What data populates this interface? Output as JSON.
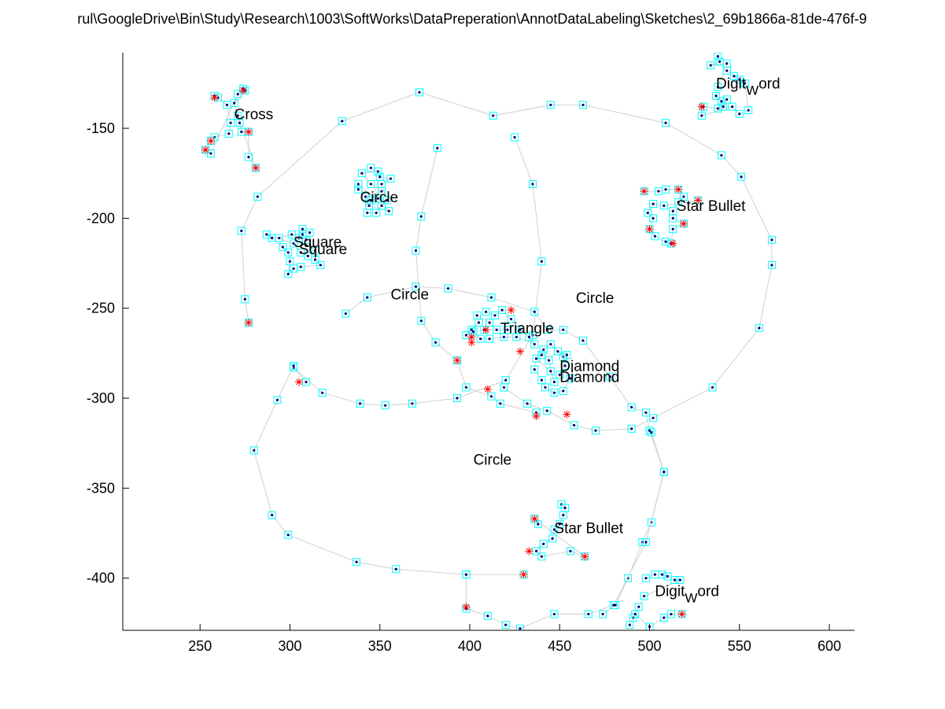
{
  "chart_data": {
    "type": "scatter",
    "title": "rul\\GoogleDrive\\Bin\\Study\\Research\\1003\\SoftWorks\\DataPreperation\\AnnotDataLabeling\\Sketches\\2_69b1866a-81de-476f-9",
    "xlabel": "",
    "ylabel": "",
    "xlim": [
      207,
      614
    ],
    "ylim": [
      -429,
      -108
    ],
    "grid": false,
    "x_ticks": [
      250,
      300,
      350,
      400,
      450,
      500,
      550,
      600
    ],
    "y_ticks": [
      -150,
      -200,
      -250,
      -300,
      -350,
      -400
    ],
    "x_tick_labels": [
      "250",
      "300",
      "350",
      "400",
      "450",
      "500",
      "550",
      "600"
    ],
    "y_tick_labels": [
      "-150",
      "-200",
      "-250",
      "-300",
      "-350",
      "-400"
    ],
    "colors": {
      "stroke": "#d0d0d0",
      "marker_box": "#00ffff",
      "point": "#000080",
      "corner": "#ff0000",
      "axis": "#000000"
    },
    "annotations": [
      {
        "text": "Cross",
        "x": 269,
        "y": -145
      },
      {
        "text": "Circle",
        "x": 339,
        "y": -191
      },
      {
        "text": "Square",
        "x": 302,
        "y": -216
      },
      {
        "text": "Square",
        "x": 305,
        "y": -220
      },
      {
        "text": "Circle",
        "x": 356,
        "y": -245
      },
      {
        "text": "Circle",
        "x": 459,
        "y": -247
      },
      {
        "text": "Triangle",
        "x": 417,
        "y": -264
      },
      {
        "text": "Diamond",
        "x": 450,
        "y": -285
      },
      {
        "text": "Diamond",
        "x": 450,
        "y": -291
      },
      {
        "text": "Circle",
        "x": 402,
        "y": -337
      },
      {
        "text": "Star Bullet",
        "x": 515,
        "y": -196
      },
      {
        "text": "Star Bullet",
        "x": 447,
        "y": -375
      },
      {
        "text": "Digit",
        "x": 537,
        "y": -128,
        "sub": "W",
        "suffix": "ord"
      },
      {
        "text": "Digit",
        "x": 503,
        "y": -410,
        "sub": "W",
        "suffix": "ord"
      }
    ],
    "strokes": [
      {
        "name": "circle-large-outer",
        "points": [
          [
            277,
            -258
          ],
          [
            275,
            -245
          ],
          [
            273,
            -207
          ],
          [
            282,
            -188
          ],
          [
            329,
            -146
          ],
          [
            372,
            -130
          ],
          [
            413,
            -143
          ],
          [
            445,
            -137
          ],
          [
            463,
            -137
          ],
          [
            509,
            -147
          ],
          [
            540,
            -165
          ],
          [
            551,
            -177
          ],
          [
            568,
            -212
          ],
          [
            568,
            -226
          ],
          [
            561,
            -261
          ],
          [
            535,
            -294
          ],
          [
            502,
            -311
          ],
          [
            490,
            -317
          ],
          [
            470,
            -318
          ],
          [
            458,
            -315
          ],
          [
            443,
            -307
          ],
          [
            432,
            -303
          ],
          [
            419,
            -294
          ]
        ]
      },
      {
        "name": "circle-upper-left",
        "points": [
          [
            425,
            -155
          ],
          [
            435,
            -181
          ],
          [
            440,
            -224
          ],
          [
            435,
            -265
          ],
          [
            420,
            -290
          ],
          [
            393,
            -300
          ],
          [
            368,
            -303
          ],
          [
            353,
            -304
          ],
          [
            339,
            -303
          ],
          [
            318,
            -297
          ],
          [
            302,
            -283
          ],
          [
            309,
            -291
          ]
        ]
      },
      {
        "name": "circle-upper-mid",
        "points": [
          [
            331,
            -253
          ],
          [
            343,
            -244
          ],
          [
            370,
            -238
          ],
          [
            388,
            -239
          ],
          [
            412,
            -244
          ],
          [
            436,
            -252
          ],
          [
            443,
            -262
          ],
          [
            452,
            -262
          ],
          [
            463,
            -268
          ],
          [
            478,
            -288
          ],
          [
            490,
            -305
          ],
          [
            498,
            -308
          ],
          [
            500,
            -318
          ],
          [
            508,
            -341
          ],
          [
            501,
            -369
          ],
          [
            496,
            -380
          ],
          [
            488,
            -400
          ],
          [
            481,
            -415
          ],
          [
            474,
            -420
          ]
        ]
      },
      {
        "name": "circle-center",
        "points": [
          [
            382,
            -161
          ],
          [
            373,
            -199
          ],
          [
            370,
            -218
          ],
          [
            373,
            -257
          ],
          [
            381,
            -269
          ],
          [
            393,
            -279
          ],
          [
            398,
            -294
          ],
          [
            412,
            -299
          ],
          [
            417,
            -303
          ],
          [
            437,
            -308
          ]
        ]
      },
      {
        "name": "circle-bottom",
        "points": [
          [
            501,
            -319
          ],
          [
            508,
            -341
          ],
          [
            498,
            -380
          ],
          [
            480,
            -415
          ],
          [
            466,
            -420
          ],
          [
            447,
            -420
          ],
          [
            428,
            -428
          ],
          [
            420,
            -426
          ],
          [
            410,
            -421
          ],
          [
            398,
            -417
          ],
          [
            398,
            -398
          ],
          [
            430,
            -398
          ],
          [
            398,
            -398
          ],
          [
            359,
            -395
          ],
          [
            337,
            -391
          ],
          [
            299,
            -376
          ],
          [
            290,
            -365
          ],
          [
            280,
            -329
          ],
          [
            293,
            -301
          ],
          [
            302,
            -282
          ]
        ]
      }
    ],
    "point_clusters": [
      {
        "name": "cross",
        "points": [
          [
            258,
            -132
          ],
          [
            260,
            -133
          ],
          [
            265,
            -137
          ],
          [
            267,
            -147
          ],
          [
            266,
            -153
          ],
          [
            258,
            -155
          ],
          [
            256,
            -157
          ],
          [
            253,
            -162
          ],
          [
            256,
            -164
          ],
          [
            271,
            -131
          ],
          [
            274,
            -128
          ],
          [
            275,
            -129
          ],
          [
            269,
            -136
          ],
          [
            272,
            -147
          ],
          [
            273,
            -152
          ],
          [
            277,
            -152
          ],
          [
            277,
            -166
          ],
          [
            281,
            -172
          ],
          [
            271,
            -143
          ]
        ]
      },
      {
        "name": "circle-small",
        "points": [
          [
            345,
            -172
          ],
          [
            349,
            -174
          ],
          [
            340,
            -175
          ],
          [
            345,
            -181
          ],
          [
            351,
            -185
          ],
          [
            342,
            -188
          ],
          [
            343,
            -197
          ],
          [
            348,
            -197
          ],
          [
            351,
            -193
          ],
          [
            354,
            -190
          ],
          [
            351,
            -181
          ],
          [
            356,
            -178
          ],
          [
            350,
            -177
          ],
          [
            345,
            -190
          ],
          [
            349,
            -189
          ],
          [
            338,
            -184
          ],
          [
            338,
            -181
          ],
          [
            355,
            -196
          ],
          [
            344,
            -193
          ]
        ]
      },
      {
        "name": "square",
        "points": [
          [
            294,
            -211
          ],
          [
            301,
            -209
          ],
          [
            305,
            -211
          ],
          [
            307,
            -209
          ],
          [
            307,
            -206
          ],
          [
            311,
            -208
          ],
          [
            309,
            -212
          ],
          [
            314,
            -218
          ],
          [
            314,
            -223
          ],
          [
            317,
            -226
          ],
          [
            306,
            -227
          ],
          [
            302,
            -228
          ],
          [
            299,
            -231
          ],
          [
            300,
            -224
          ],
          [
            299,
            -219
          ],
          [
            296,
            -216
          ],
          [
            290,
            -211
          ],
          [
            287,
            -209
          ],
          [
            302,
            -214
          ],
          [
            306,
            -219
          ],
          [
            310,
            -221
          ]
        ]
      },
      {
        "name": "triangle",
        "points": [
          [
            409,
            -252
          ],
          [
            414,
            -254
          ],
          [
            418,
            -251
          ],
          [
            423,
            -256
          ],
          [
            428,
            -262
          ],
          [
            433,
            -266
          ],
          [
            436,
            -270
          ],
          [
            426,
            -266
          ],
          [
            419,
            -266
          ],
          [
            411,
            -267
          ],
          [
            406,
            -267
          ],
          [
            402,
            -263
          ],
          [
            398,
            -265
          ],
          [
            401,
            -262
          ],
          [
            405,
            -258
          ],
          [
            404,
            -254
          ],
          [
            411,
            -258
          ],
          [
            415,
            -262
          ],
          [
            421,
            -262
          ],
          [
            408,
            -262
          ]
        ]
      },
      {
        "name": "diamond",
        "points": [
          [
            441,
            -273
          ],
          [
            445,
            -270
          ],
          [
            449,
            -274
          ],
          [
            452,
            -277
          ],
          [
            453,
            -282
          ],
          [
            456,
            -289
          ],
          [
            452,
            -296
          ],
          [
            447,
            -297
          ],
          [
            442,
            -294
          ],
          [
            440,
            -290
          ],
          [
            436,
            -284
          ],
          [
            437,
            -278
          ],
          [
            445,
            -285
          ],
          [
            447,
            -291
          ],
          [
            444,
            -279
          ],
          [
            440,
            -276
          ],
          [
            454,
            -276
          ],
          [
            450,
            -287
          ]
        ]
      },
      {
        "name": "star-bullet-upper",
        "points": [
          [
            497,
            -185
          ],
          [
            505,
            -185
          ],
          [
            509,
            -184
          ],
          [
            516,
            -184
          ],
          [
            519,
            -188
          ],
          [
            516,
            -191
          ],
          [
            513,
            -196
          ],
          [
            513,
            -200
          ],
          [
            519,
            -203
          ],
          [
            513,
            -206
          ],
          [
            512,
            -214
          ],
          [
            509,
            -213
          ],
          [
            503,
            -210
          ],
          [
            500,
            -206
          ],
          [
            502,
            -200
          ],
          [
            499,
            -197
          ],
          [
            502,
            -192
          ],
          [
            508,
            -193
          ],
          [
            527,
            -190
          ]
        ]
      },
      {
        "name": "star-bullet-lower",
        "points": [
          [
            451,
            -359
          ],
          [
            453,
            -361
          ],
          [
            452,
            -365
          ],
          [
            450,
            -370
          ],
          [
            447,
            -373
          ],
          [
            446,
            -378
          ],
          [
            441,
            -381
          ],
          [
            437,
            -385
          ],
          [
            440,
            -388
          ],
          [
            456,
            -385
          ],
          [
            464,
            -388
          ],
          [
            436,
            -367
          ],
          [
            438,
            -370
          ]
        ]
      },
      {
        "name": "digit-word-upper",
        "points": [
          [
            540,
            -105
          ],
          [
            538,
            -110
          ],
          [
            539,
            -113
          ],
          [
            534,
            -115
          ],
          [
            543,
            -114
          ],
          [
            538,
            -127
          ],
          [
            537,
            -132
          ],
          [
            540,
            -135
          ],
          [
            543,
            -134
          ],
          [
            541,
            -138
          ],
          [
            538,
            -139
          ],
          [
            530,
            -138
          ],
          [
            529,
            -143
          ],
          [
            546,
            -138
          ],
          [
            550,
            -142
          ],
          [
            555,
            -140
          ],
          [
            553,
            -125
          ],
          [
            550,
            -123
          ],
          [
            547,
            -121
          ],
          [
            543,
            -118
          ]
        ]
      },
      {
        "name": "digit-word-lower",
        "points": [
          [
            498,
            -400
          ],
          [
            503,
            -398
          ],
          [
            507,
            -398
          ],
          [
            510,
            -399
          ],
          [
            514,
            -401
          ],
          [
            517,
            -401
          ],
          [
            497,
            -410
          ],
          [
            494,
            -416
          ],
          [
            491,
            -422
          ],
          [
            489,
            -426
          ],
          [
            492,
            -420
          ],
          [
            500,
            -427
          ],
          [
            508,
            -422
          ],
          [
            512,
            -420
          ],
          [
            518,
            -420
          ]
        ]
      }
    ],
    "corner_points": [
      [
        258,
        -133
      ],
      [
        253,
        -162
      ],
      [
        256,
        -157
      ],
      [
        277,
        -152
      ],
      [
        281,
        -172
      ],
      [
        274,
        -129
      ],
      [
        277,
        -258
      ],
      [
        409,
        -262
      ],
      [
        401,
        -266
      ],
      [
        401,
        -269
      ],
      [
        423,
        -251
      ],
      [
        428,
        -274
      ],
      [
        393,
        -279
      ],
      [
        410,
        -295
      ],
      [
        437,
        -310
      ],
      [
        454,
        -309
      ],
      [
        497,
        -185
      ],
      [
        516,
        -184
      ],
      [
        500,
        -206
      ],
      [
        513,
        -214
      ],
      [
        519,
        -203
      ],
      [
        527,
        -190
      ],
      [
        305,
        -291
      ],
      [
        436,
        -367
      ],
      [
        433,
        -385
      ],
      [
        464,
        -388
      ],
      [
        430,
        -398
      ],
      [
        398,
        -416
      ],
      [
        529,
        -138
      ],
      [
        518,
        -420
      ]
    ]
  }
}
